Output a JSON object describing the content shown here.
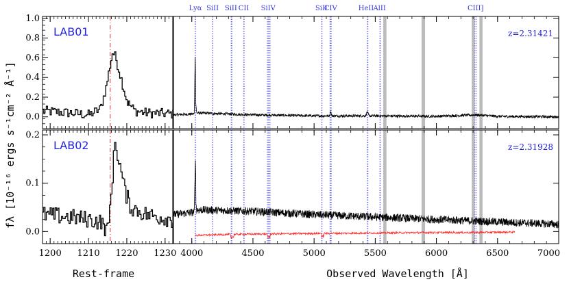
{
  "chart_data": {
    "type": "line",
    "ylabel": "fλ [10⁻¹⁶ ergs s⁻¹cm⁻² Å⁻¹]",
    "left_panel": {
      "xlabel": "Rest-frame",
      "xlim": [
        1198,
        1232
      ],
      "xticks": [
        1200,
        1210,
        1220,
        1230
      ],
      "lya_marker": 1215.67
    },
    "right_panel": {
      "xlabel": "Observed Wavelength [Å]",
      "xlim": [
        3850,
        7000
      ],
      "xticks": [
        4000,
        4500,
        5000,
        5500,
        6000,
        6500,
        7000
      ],
      "line_labels": [
        {
          "label": "Lyα",
          "x": 4030
        },
        {
          "label": "SiII",
          "x": 4170
        },
        {
          "label": "SiII",
          "x": 4320
        },
        {
          "label": "CII",
          "x": 4425
        },
        {
          "label": "SiIV",
          "x": 4625
        },
        {
          "label": "SiII",
          "x": 5060
        },
        {
          "label": "CIV",
          "x": 5135
        },
        {
          "label": "HeII",
          "x": 5425
        },
        {
          "label": "AlII",
          "x": 5535
        },
        {
          "label": "CIII]",
          "x": 6320
        }
      ],
      "line_positions": [
        4028,
        4028,
        4030,
        4030,
        4170,
        4172,
        4322,
        4325,
        4328,
        4425,
        4428,
        4618,
        4625,
        4632,
        4640,
        5062,
        5065,
        5130,
        5135,
        5140,
        5435,
        5440,
        5538,
        5542,
        6315,
        6325
      ],
      "sky_bands": [
        5577,
        5580,
        5890,
        5896,
        6300,
        6303,
        6363,
        6366
      ]
    },
    "panels": [
      {
        "name": "LAB01",
        "redshift": "z=2.31421",
        "ylim": [
          -0.12,
          1.02
        ],
        "yticks": [
          0.0,
          0.2,
          0.4,
          0.6,
          0.8,
          1.0
        ],
        "rest_frame": {
          "x": [
            1198,
            1205,
            1210,
            1213,
            1214.5,
            1215.5,
            1216.2,
            1217,
            1218,
            1219,
            1220,
            1222,
            1225,
            1232
          ],
          "y": [
            0.06,
            0.04,
            0.02,
            0.08,
            0.3,
            0.52,
            0.66,
            0.6,
            0.45,
            0.3,
            0.15,
            0.06,
            0.04,
            0.03
          ]
        },
        "observed": {
          "x": [
            3850,
            4020,
            4028,
            4032,
            4040,
            4500,
            5000,
            5125,
            5135,
            5145,
            5420,
            5435,
            5450,
            6000,
            6320,
            6500,
            7000
          ],
          "y": [
            0.02,
            0.03,
            0.62,
            0.15,
            0.04,
            0.02,
            0.01,
            0.01,
            0.06,
            0.01,
            0.01,
            0.05,
            0.01,
            0.005,
            0.02,
            0.005,
            0.0
          ]
        }
      },
      {
        "name": "LAB02",
        "redshift": "z=2.31928",
        "ylim": [
          -0.025,
          0.21
        ],
        "yticks": [
          0.0,
          0.1,
          0.2
        ],
        "rest_frame": {
          "x": [
            1198,
            1205,
            1210,
            1213,
            1215,
            1215.8,
            1216.8,
            1217.5,
            1218.5,
            1219.5,
            1221,
            1225,
            1232
          ],
          "y": [
            0.035,
            0.03,
            0.025,
            0.02,
            0.0,
            0.08,
            0.185,
            0.16,
            0.12,
            0.08,
            0.05,
            0.035,
            0.025
          ]
        },
        "observed": {
          "x": [
            3850,
            4020,
            4030,
            4034,
            4040,
            4500,
            5000,
            5500,
            6000,
            6500,
            7000
          ],
          "y": [
            0.035,
            0.04,
            0.155,
            0.06,
            0.045,
            0.042,
            0.035,
            0.03,
            0.025,
            0.02,
            0.015
          ]
        },
        "error": {
          "x": [
            4030,
            4300,
            4600,
            5000,
            5500,
            6000,
            6300,
            6640
          ],
          "y": [
            -0.008,
            -0.006,
            -0.005,
            -0.004,
            -0.003,
            -0.002,
            -0.002,
            -0.001
          ]
        }
      }
    ]
  }
}
